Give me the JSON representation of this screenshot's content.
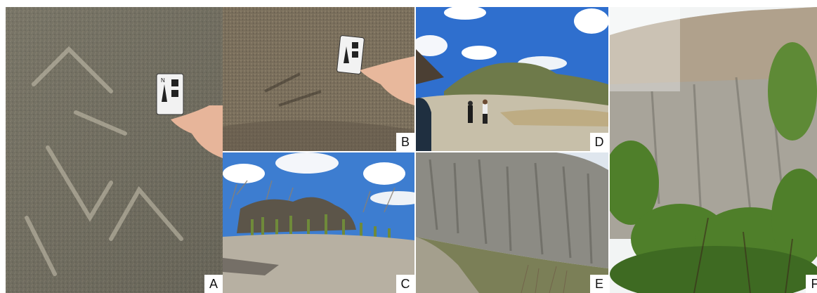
{
  "panels": [
    {
      "id": "A",
      "label": "A"
    },
    {
      "id": "B",
      "label": "B"
    },
    {
      "id": "C",
      "label": "C"
    },
    {
      "id": "D",
      "label": "D"
    },
    {
      "id": "E",
      "label": "E"
    },
    {
      "id": "F",
      "label": "F"
    }
  ],
  "scale_card": {
    "letter": "N"
  },
  "colors": {
    "rock": "#8a8574",
    "sky": "#3a7fd6",
    "vegetation": "#4f7f2a",
    "label_bg": "#ffffff"
  }
}
